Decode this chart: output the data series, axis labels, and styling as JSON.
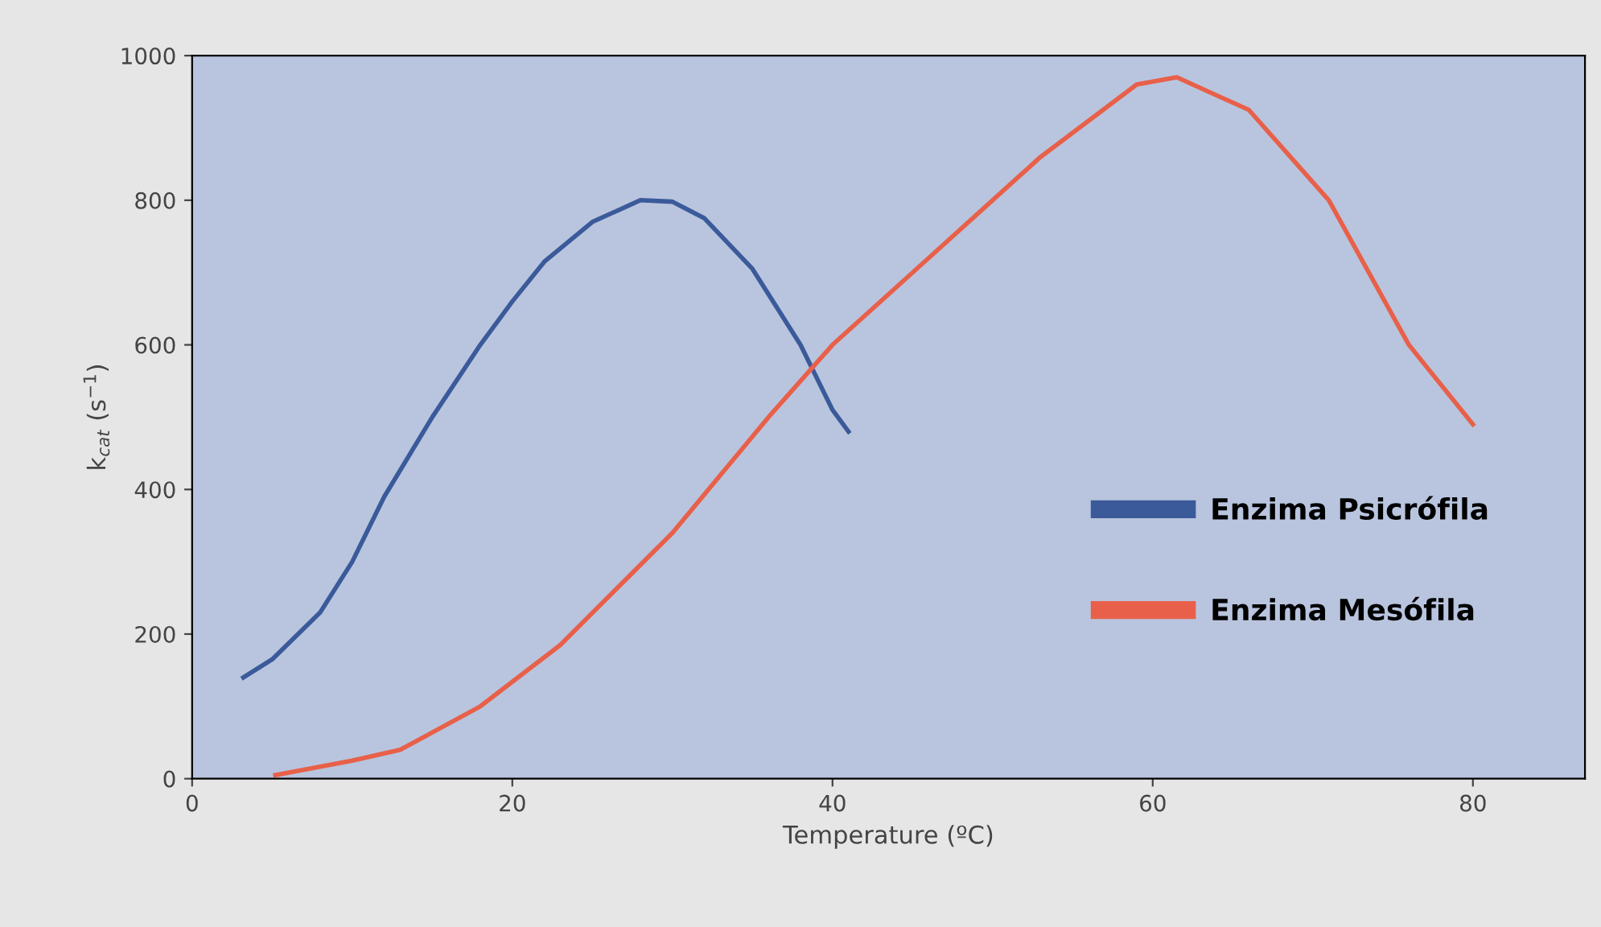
{
  "chart_data": {
    "type": "line",
    "xlabel": "Temperature (ºC)",
    "ylabel": "k$_{cat}$ (s$^{−1}$)",
    "xlim": [
      0,
      87
    ],
    "ylim": [
      0,
      1000
    ],
    "xticks": [
      0,
      20,
      40,
      60,
      80
    ],
    "yticks": [
      0,
      200,
      400,
      600,
      800,
      1000
    ],
    "grid": false,
    "legend": "right",
    "marker": "none",
    "line_style": "solid",
    "series": [
      {
        "name": "Enzima Psicrófila",
        "color": "#3b5a9a",
        "x": [
          3.2,
          5,
          8,
          10,
          12,
          15,
          18,
          20,
          22,
          25,
          28,
          30,
          32,
          35,
          38,
          40,
          41
        ],
        "values": [
          140,
          165,
          230,
          300,
          390,
          500,
          600,
          660,
          715,
          770,
          800,
          798,
          775,
          705,
          600,
          510,
          480
        ]
      },
      {
        "name": "Enzima Mesófila",
        "color": "#e8604a",
        "x": [
          5.2,
          10,
          13,
          18,
          23,
          30,
          36,
          40,
          46,
          53,
          59,
          61.5,
          66,
          71,
          76,
          80
        ],
        "values": [
          5,
          25,
          40,
          100,
          185,
          340,
          500,
          600,
          720,
          860,
          960,
          970,
          925,
          800,
          600,
          490
        ]
      }
    ]
  }
}
